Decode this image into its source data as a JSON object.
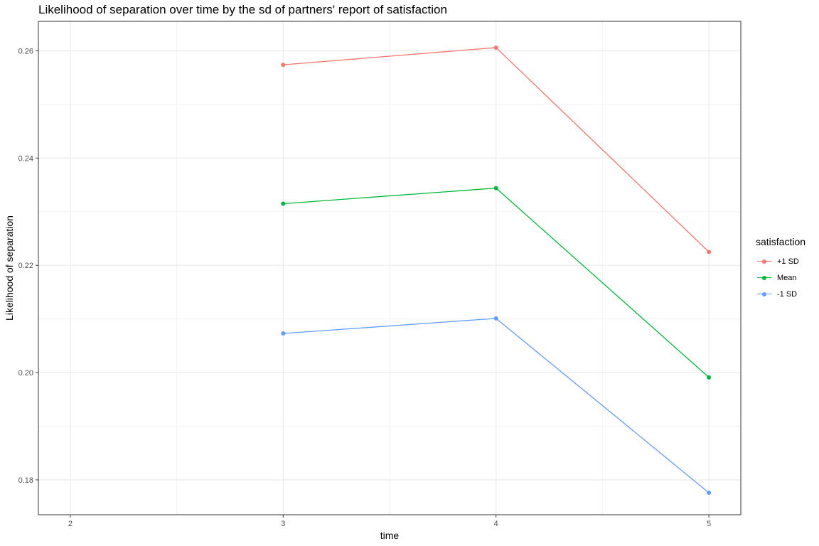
{
  "chart_data": {
    "type": "line",
    "title": "Likelihood of separation over time by the sd of partners' report of satisfaction",
    "xlabel": "time",
    "ylabel": "Likelihood of separation",
    "xlim": [
      1.85,
      5.15
    ],
    "ylim": [
      0.1735,
      0.2655
    ],
    "x_ticks": [
      2,
      3,
      4,
      5
    ],
    "y_ticks": [
      0.18,
      0.2,
      0.22,
      0.24,
      0.26
    ],
    "y_tick_labels": [
      "0.18",
      "0.20",
      "0.22",
      "0.24",
      "0.26"
    ],
    "grid": true,
    "legend": {
      "title": "satisfaction",
      "position": "right"
    },
    "series": [
      {
        "name": "+1 SD",
        "color": "#F8766D",
        "x": [
          3,
          4,
          5
        ],
        "values": [
          0.2574,
          0.2606,
          0.2225
        ]
      },
      {
        "name": "Mean",
        "color": "#00BA38",
        "x": [
          3,
          4,
          5
        ],
        "values": [
          0.2315,
          0.2344,
          0.1991
        ]
      },
      {
        "name": "-1 SD",
        "color": "#619CFF",
        "x": [
          3,
          4,
          5
        ],
        "values": [
          0.2073,
          0.2101,
          0.1776
        ]
      }
    ]
  }
}
